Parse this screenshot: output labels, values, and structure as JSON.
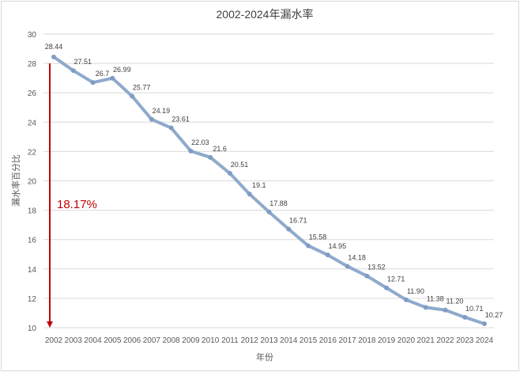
{
  "chart_data": {
    "type": "line",
    "title": "2002-2024年漏水率",
    "xlabel": "年份",
    "ylabel": "漏水率百分比",
    "categories": [
      "2002",
      "2003",
      "2004",
      "2005",
      "2006",
      "2007",
      "2008",
      "2009",
      "2010",
      "2011",
      "2012",
      "2013",
      "2014",
      "2015",
      "2016",
      "2017",
      "2018",
      "2019",
      "2020",
      "2021",
      "2022",
      "2023",
      "2024"
    ],
    "values": [
      28.44,
      27.51,
      26.7,
      26.99,
      25.77,
      24.19,
      23.61,
      22.03,
      21.6,
      20.51,
      19.1,
      17.88,
      16.71,
      15.58,
      14.95,
      14.18,
      13.52,
      12.71,
      11.9,
      11.38,
      11.2,
      10.71,
      10.27
    ],
    "labels": [
      "28.44",
      "27.51",
      "26.7",
      "26.99",
      "25.77",
      "24.19",
      "23.61",
      "22.03",
      "21.6",
      "20.51",
      "19.1",
      "17.88",
      "16.71",
      "15.58",
      "14.95",
      "14.18",
      "13.52",
      "12.71",
      "11.90",
      "11.38",
      "11.20",
      "10.71",
      "10.27"
    ],
    "ylim": [
      10,
      30
    ],
    "yticks": [
      10,
      12,
      14,
      16,
      18,
      20,
      22,
      24,
      26,
      28,
      30
    ],
    "grid": true,
    "series_color": "#8eaacc",
    "annotation": {
      "text": "18.17%",
      "from": 28,
      "to": 10,
      "color": "#c00000"
    }
  }
}
